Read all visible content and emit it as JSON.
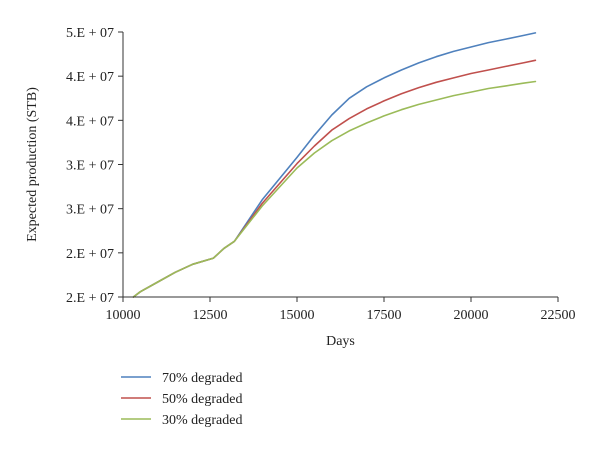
{
  "chart_data": {
    "type": "line",
    "title": "",
    "xlabel": "Days",
    "ylabel": "Expected production (STB)",
    "xlim": [
      10000,
      22500
    ],
    "ylim": [
      20000000,
      50000000
    ],
    "x_ticks": [
      10000,
      12500,
      15000,
      17500,
      20000,
      22500
    ],
    "x_tick_labels": [
      "10000",
      "12500",
      "15000",
      "17500",
      "20000",
      "22500"
    ],
    "y_ticks": [
      20000000,
      25000000,
      30000000,
      35000000,
      40000000,
      45000000,
      50000000
    ],
    "y_tick_labels": [
      "2.E + 07",
      "2.E + 07",
      "3.E + 07",
      "3.E + 07",
      "4.E + 07",
      "4.E + 07",
      "5.E + 07"
    ],
    "grid": false,
    "legend_position": "bottom-left",
    "series": [
      {
        "name": "70% degraded",
        "color": "#4f81bd",
        "x": [
          10300,
          10500,
          11000,
          11500,
          12000,
          12600,
          12900,
          13200,
          14000,
          15000,
          15500,
          16000,
          16500,
          17000,
          17500,
          18000,
          18500,
          19000,
          19500,
          20000,
          20500,
          21000,
          21500,
          21850
        ],
        "y": [
          20000000,
          20600000,
          21700000,
          22800000,
          23700000,
          24400000,
          25500000,
          26300000,
          31000000,
          35800000,
          38300000,
          40600000,
          42500000,
          43800000,
          44800000,
          45700000,
          46500000,
          47200000,
          47800000,
          48300000,
          48800000,
          49200000,
          49600000,
          49900000
        ]
      },
      {
        "name": "50% degraded",
        "color": "#c0504d",
        "x": [
          10300,
          10500,
          11000,
          11500,
          12000,
          12600,
          12900,
          13200,
          14000,
          15000,
          15500,
          16000,
          16500,
          17000,
          17500,
          18000,
          18500,
          19000,
          19500,
          20000,
          20500,
          21000,
          21500,
          21850
        ],
        "y": [
          20000000,
          20600000,
          21700000,
          22800000,
          23700000,
          24400000,
          25500000,
          26300000,
          30600000,
          35100000,
          37100000,
          38900000,
          40200000,
          41300000,
          42200000,
          43000000,
          43700000,
          44300000,
          44800000,
          45300000,
          45700000,
          46100000,
          46500000,
          46800000
        ]
      },
      {
        "name": "30% degraded",
        "color": "#9bbb59",
        "x": [
          10300,
          10500,
          11000,
          11500,
          12000,
          12600,
          12900,
          13200,
          14000,
          15000,
          15500,
          16000,
          16500,
          17000,
          17500,
          18000,
          18500,
          19000,
          19500,
          20000,
          20500,
          21000,
          21500,
          21850
        ],
        "y": [
          20000000,
          20600000,
          21700000,
          22800000,
          23700000,
          24400000,
          25500000,
          26300000,
          30300000,
          34600000,
          36300000,
          37700000,
          38800000,
          39700000,
          40500000,
          41200000,
          41800000,
          42300000,
          42800000,
          43200000,
          43600000,
          43900000,
          44200000,
          44400000
        ]
      }
    ]
  }
}
